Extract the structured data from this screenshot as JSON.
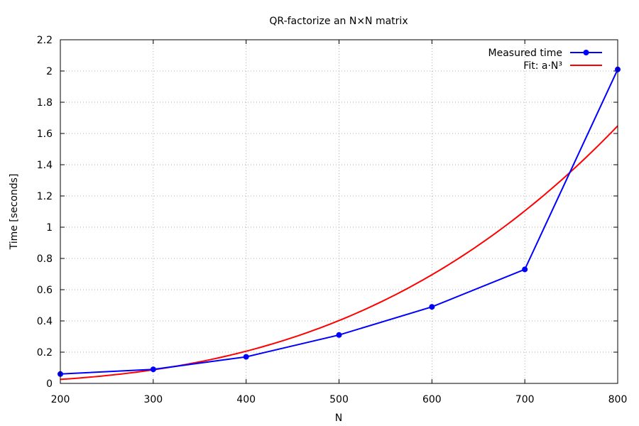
{
  "chart_data": {
    "type": "line",
    "title": "QR-factorize an N×N matrix",
    "xlabel": "N",
    "ylabel": "Time [seconds]",
    "xlim": [
      200,
      800
    ],
    "ylim": [
      0,
      2.2
    ],
    "x_ticks": [
      200,
      300,
      400,
      500,
      600,
      700,
      800
    ],
    "y_ticks": [
      0,
      0.2,
      0.4,
      0.6,
      0.8,
      1.0,
      1.2,
      1.4,
      1.6,
      1.8,
      2.0,
      2.2
    ],
    "x_tick_labels": [
      "200",
      "300",
      "400",
      "500",
      "600",
      "700",
      "800"
    ],
    "y_tick_labels": [
      "0",
      "0.2",
      "0.4",
      "0.6",
      "0.8",
      "1",
      "1.2",
      "1.4",
      "1.6",
      "1.8",
      "2",
      "2.2"
    ],
    "grid": true,
    "legend_position": "top-right",
    "series": [
      {
        "name": "Measured time",
        "kind": "line-with-points",
        "color": "#0000ff",
        "x": [
          200,
          300,
          400,
          500,
          600,
          700,
          800
        ],
        "y": [
          0.06,
          0.09,
          0.17,
          0.31,
          0.49,
          0.73,
          2.01
        ]
      },
      {
        "name": "Fit: a·N³",
        "kind": "fit-curve",
        "color": "#ff0000",
        "coefficient_a": 3.22e-09,
        "x": [
          200,
          250,
          300,
          350,
          400,
          450,
          500,
          550,
          600,
          650,
          700,
          750,
          800
        ],
        "y": [
          0.026,
          0.05,
          0.087,
          0.138,
          0.206,
          0.293,
          0.403,
          0.536,
          0.696,
          0.884,
          1.104,
          1.359,
          1.649
        ]
      }
    ]
  }
}
